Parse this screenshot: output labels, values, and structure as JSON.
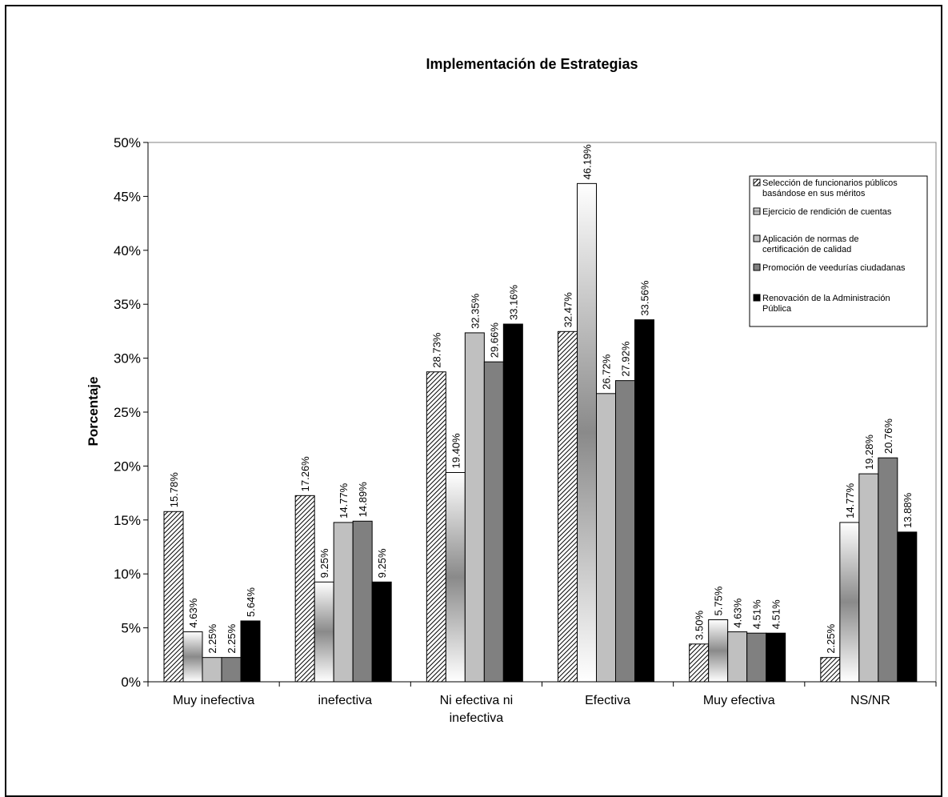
{
  "chart_data": {
    "type": "bar",
    "title": "Implementación de Estrategias",
    "xlabel": "",
    "ylabel": "Porcentaje",
    "ylim": [
      0,
      50
    ],
    "yticks": [
      "0%",
      "5%",
      "10%",
      "15%",
      "20%",
      "25%",
      "30%",
      "35%",
      "40%",
      "45%",
      "50%"
    ],
    "categories": [
      [
        "Muy inefectiva"
      ],
      [
        "inefectiva"
      ],
      [
        "Ni efectiva ni",
        "inefectiva"
      ],
      [
        "Efectiva"
      ],
      [
        "Muy efectiva"
      ],
      [
        "NS/NR"
      ]
    ],
    "legend_position": "top-right",
    "series": [
      {
        "name": [
          "Selección de funcionarios públicos",
          "basándose en sus méritos"
        ],
        "values": [
          15.78,
          17.26,
          28.73,
          32.47,
          3.5,
          2.25
        ],
        "labels": [
          "15.78%",
          "17.26%",
          "28.73%",
          "32.47%",
          "3.50%",
          "2.25%"
        ],
        "fill": "hatch"
      },
      {
        "name": [
          "Ejercicio de rendición de cuentas"
        ],
        "values": [
          4.63,
          9.25,
          19.4,
          46.19,
          5.75,
          14.77
        ],
        "labels": [
          "4.63%",
          "9.25%",
          "19.40%",
          "46.19%",
          "5.75%",
          "14.77%"
        ],
        "fill": "gradient"
      },
      {
        "name": [
          "Aplicación de normas de",
          "certificación de calidad"
        ],
        "values": [
          2.25,
          14.77,
          32.35,
          26.72,
          4.63,
          19.28
        ],
        "labels": [
          "2.25%",
          "14.77%",
          "32.35%",
          "26.72%",
          "4.63%",
          "19.28%"
        ],
        "fill": "#c0c0c0"
      },
      {
        "name": [
          "Promoción de veedurías ciudadanas"
        ],
        "values": [
          2.25,
          14.89,
          29.66,
          27.92,
          4.51,
          20.76
        ],
        "labels": [
          "2.25%",
          "14.89%",
          "29.66%",
          "27.92%",
          "4.51%",
          "20.76%"
        ],
        "fill": "#808080"
      },
      {
        "name": [
          "Renovación de la Administración",
          "Pública"
        ],
        "values": [
          5.64,
          9.25,
          33.16,
          33.56,
          4.51,
          13.88
        ],
        "labels": [
          "5.64%",
          "9.25%",
          "33.16%",
          "33.56%",
          "4.51%",
          "13.88%"
        ],
        "fill": "#000000"
      }
    ]
  }
}
